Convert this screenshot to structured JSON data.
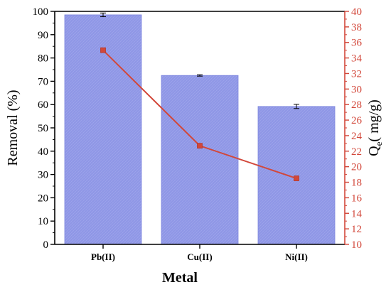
{
  "chart_data": {
    "type": "bar",
    "categories": [
      "Pb(II)",
      "Cu(II)",
      "Ni(II)"
    ],
    "xlabel": "Metal",
    "series": [
      {
        "name": "Removal (%)",
        "type": "bar",
        "axis": "left",
        "values": [
          98.5,
          72.5,
          59.2
        ],
        "errors": [
          0.8,
          0.3,
          0.9
        ]
      },
      {
        "name": "Qe( mg/g)",
        "type": "line",
        "axis": "right",
        "values": [
          35.0,
          22.7,
          18.5
        ]
      }
    ],
    "y_left": {
      "label": "Removal (%)",
      "range": [
        0,
        100
      ],
      "ticks": [
        "0",
        "10",
        "20",
        "30",
        "40",
        "50",
        "60",
        "70",
        "80",
        "90",
        "100"
      ]
    },
    "y_right": {
      "label_main": "Q",
      "label_sub": "e",
      "label_rest": "( mg/g)",
      "range": [
        10,
        40
      ],
      "ticks": [
        "10",
        "12",
        "14",
        "16",
        "18",
        "20",
        "22",
        "24",
        "26",
        "28",
        "30",
        "32",
        "34",
        "36",
        "38",
        "40"
      ]
    },
    "grid": false,
    "legend": "none",
    "colors": {
      "bar_fill": "#8f97e6",
      "bar_edge": "#7d86de",
      "line": "#d2473a",
      "right_axis": "#d2473a",
      "left_axis": "#000000"
    }
  }
}
